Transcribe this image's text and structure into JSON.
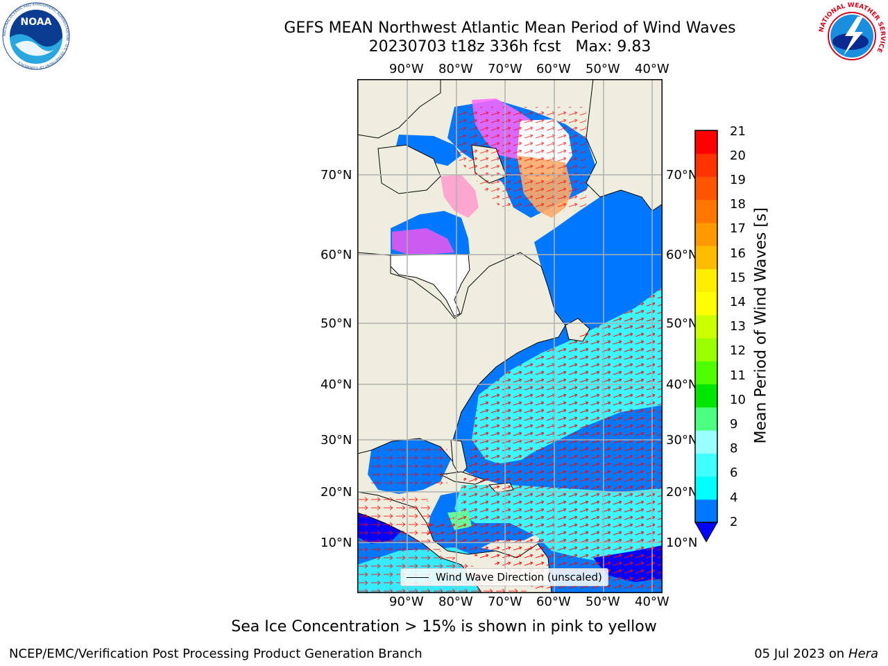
{
  "title": {
    "line1": "GEFS MEAN Northwest Atlantic Mean Period of Wind Waves",
    "line2": "20230703 t18z 336h fcst   Max: 9.83"
  },
  "logos": {
    "noara": {
      "text": "NOAA",
      "ring_text": "NATIONAL OCEANIC AND ATMOSPHERIC ADMINISTRATION · U.S. DEPARTMENT OF COMMERCE"
    },
    "nws": {
      "ring_text": "NATIONAL WEATHER SERVICE"
    }
  },
  "map": {
    "lon_labels": [
      "90°W",
      "80°W",
      "70°W",
      "60°W",
      "50°W",
      "40°W"
    ],
    "lat_labels": [
      "70°N",
      "60°N",
      "50°N",
      "40°N",
      "30°N",
      "20°N",
      "10°N"
    ],
    "legend_label": "Wind Wave Direction (unscaled)",
    "colors": {
      "land": "#efedde",
      "ocean_low": "#0077ff",
      "ocean_cyan": "#40ffff",
      "ocean_deep": "#0000ff",
      "arrow": "#ff0000",
      "grid": "#b0b0b0"
    }
  },
  "colorbar": {
    "label": "Mean Period of Wind Waves [s]",
    "ticks": [
      "21",
      "20",
      "19",
      "18",
      "17",
      "16",
      "15",
      "14",
      "13",
      "12",
      "11",
      "10",
      "9",
      "8",
      "6",
      "4",
      "2"
    ],
    "colors": [
      "#0000ff",
      "#0077ff",
      "#00ffff",
      "#40ffff",
      "#99ffff",
      "#4dff80",
      "#00e600",
      "#4dff00",
      "#99ff00",
      "#ccff00",
      "#ffff00",
      "#ffee00",
      "#ffbb00",
      "#ff9900",
      "#ff7700",
      "#ff5500",
      "#ff3300",
      "#ff0000"
    ]
  },
  "caption": "Sea Ice Concentration > 15% is shown in pink to yellow",
  "footer": {
    "left": "NCEP/EMC/Verification Post Processing Product Generation Branch",
    "right_date": "05 Jul 2023 on ",
    "right_host": "Hera"
  }
}
